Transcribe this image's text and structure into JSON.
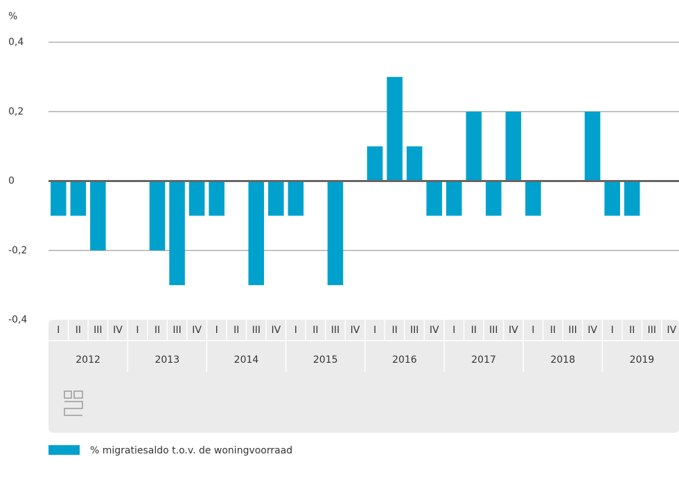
{
  "chart_data": {
    "type": "bar",
    "y_unit": "%",
    "categories": [
      "I",
      "II",
      "III",
      "IV",
      "I",
      "II",
      "III",
      "IV",
      "I",
      "II",
      "III",
      "IV",
      "I",
      "II",
      "III",
      "IV",
      "I",
      "II",
      "III",
      "IV",
      "I",
      "II",
      "III",
      "IV",
      "I",
      "II",
      "III",
      "IV",
      "I",
      "II",
      "III",
      "IV"
    ],
    "groups": [
      "2012",
      "2013",
      "2014",
      "2015",
      "2016",
      "2017",
      "2018",
      "2019"
    ],
    "series": [
      {
        "name": "% migratiesaldo t.o.v. de woningvoorraad",
        "color": "#00a1cd",
        "values": [
          -0.1,
          -0.1,
          -0.2,
          0,
          0,
          -0.2,
          -0.3,
          -0.1,
          -0.1,
          0,
          -0.3,
          -0.1,
          -0.1,
          0,
          -0.3,
          0,
          0.1,
          0.3,
          0.1,
          -0.1,
          -0.1,
          0.2,
          -0.1,
          0.2,
          -0.1,
          0,
          0,
          0.2,
          -0.1,
          -0.1,
          0,
          0
        ]
      }
    ],
    "ylim": [
      -0.4,
      0.4
    ],
    "yticks": [
      {
        "value": -0.4,
        "label": "-0,4"
      },
      {
        "value": -0.2,
        "label": "-0,2"
      },
      0,
      {
        "value": 0.2,
        "label": "0,2"
      },
      {
        "value": 0.4,
        "label": "0,4"
      }
    ],
    "grid": true
  }
}
